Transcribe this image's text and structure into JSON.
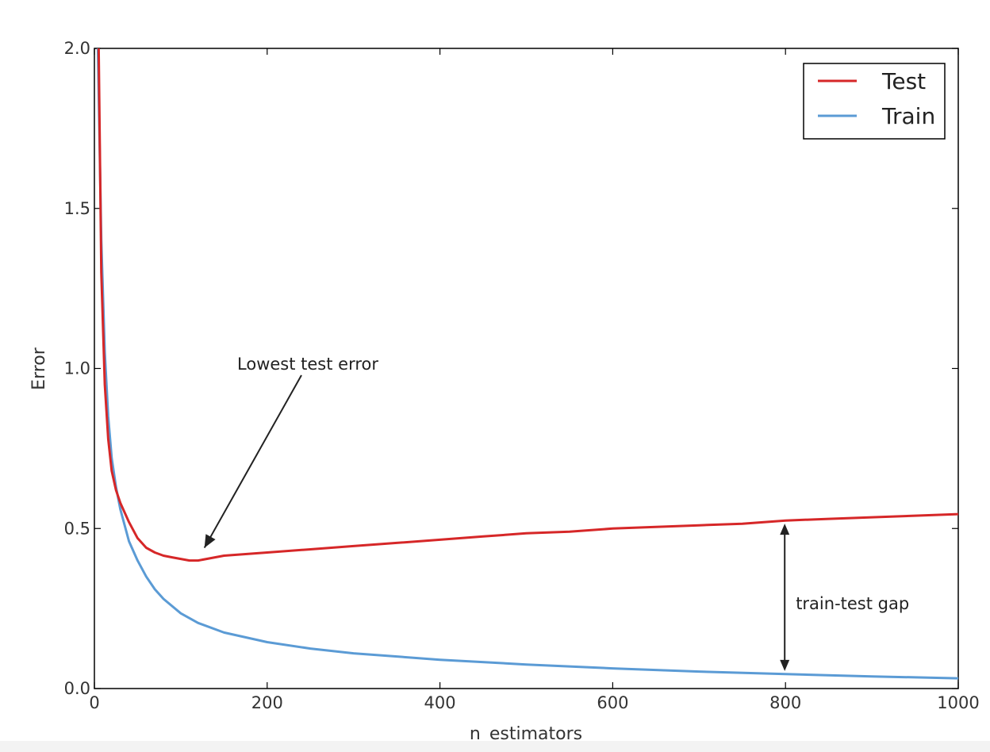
{
  "chart_data": {
    "type": "line",
    "title": "",
    "xlabel": "n_estimators",
    "ylabel": "Error",
    "xlim": [
      0,
      1000
    ],
    "ylim": [
      0.0,
      2.0
    ],
    "xticks": [
      "0",
      "200",
      "400",
      "600",
      "800",
      "1000"
    ],
    "yticks": [
      "0.0",
      "0.5",
      "1.0",
      "1.5",
      "2.0"
    ],
    "grid": false,
    "legend_position": "top-right",
    "series": [
      {
        "name": "Test",
        "color": "#d62728",
        "points": [
          [
            5,
            2.0
          ],
          [
            8,
            1.3
          ],
          [
            12,
            0.95
          ],
          [
            16,
            0.78
          ],
          [
            20,
            0.68
          ],
          [
            25,
            0.62
          ],
          [
            30,
            0.58
          ],
          [
            40,
            0.52
          ],
          [
            50,
            0.47
          ],
          [
            60,
            0.44
          ],
          [
            70,
            0.425
          ],
          [
            80,
            0.415
          ],
          [
            90,
            0.41
          ],
          [
            100,
            0.405
          ],
          [
            110,
            0.4
          ],
          [
            120,
            0.4
          ],
          [
            150,
            0.415
          ],
          [
            200,
            0.425
          ],
          [
            250,
            0.435
          ],
          [
            300,
            0.445
          ],
          [
            350,
            0.455
          ],
          [
            400,
            0.465
          ],
          [
            450,
            0.475
          ],
          [
            500,
            0.485
          ],
          [
            550,
            0.49
          ],
          [
            600,
            0.5
          ],
          [
            650,
            0.505
          ],
          [
            700,
            0.51
          ],
          [
            750,
            0.515
          ],
          [
            800,
            0.525
          ],
          [
            850,
            0.53
          ],
          [
            900,
            0.535
          ],
          [
            950,
            0.54
          ],
          [
            1000,
            0.545
          ]
        ]
      },
      {
        "name": "Train",
        "color": "#5b9bd5",
        "points": [
          [
            4,
            2.0
          ],
          [
            8,
            1.4
          ],
          [
            12,
            1.05
          ],
          [
            16,
            0.85
          ],
          [
            20,
            0.72
          ],
          [
            25,
            0.63
          ],
          [
            30,
            0.56
          ],
          [
            40,
            0.46
          ],
          [
            50,
            0.4
          ],
          [
            60,
            0.35
          ],
          [
            70,
            0.31
          ],
          [
            80,
            0.28
          ],
          [
            100,
            0.235
          ],
          [
            120,
            0.205
          ],
          [
            150,
            0.175
          ],
          [
            200,
            0.145
          ],
          [
            250,
            0.125
          ],
          [
            300,
            0.11
          ],
          [
            400,
            0.09
          ],
          [
            500,
            0.075
          ],
          [
            600,
            0.063
          ],
          [
            700,
            0.053
          ],
          [
            800,
            0.045
          ],
          [
            900,
            0.038
          ],
          [
            1000,
            0.032
          ]
        ]
      }
    ],
    "annotations": [
      {
        "text": "Lowest test error",
        "x": 120,
        "y": 0.41
      },
      {
        "text": "train-test gap",
        "x": 800,
        "y_low": 0.045,
        "y_high": 0.525
      }
    ]
  }
}
